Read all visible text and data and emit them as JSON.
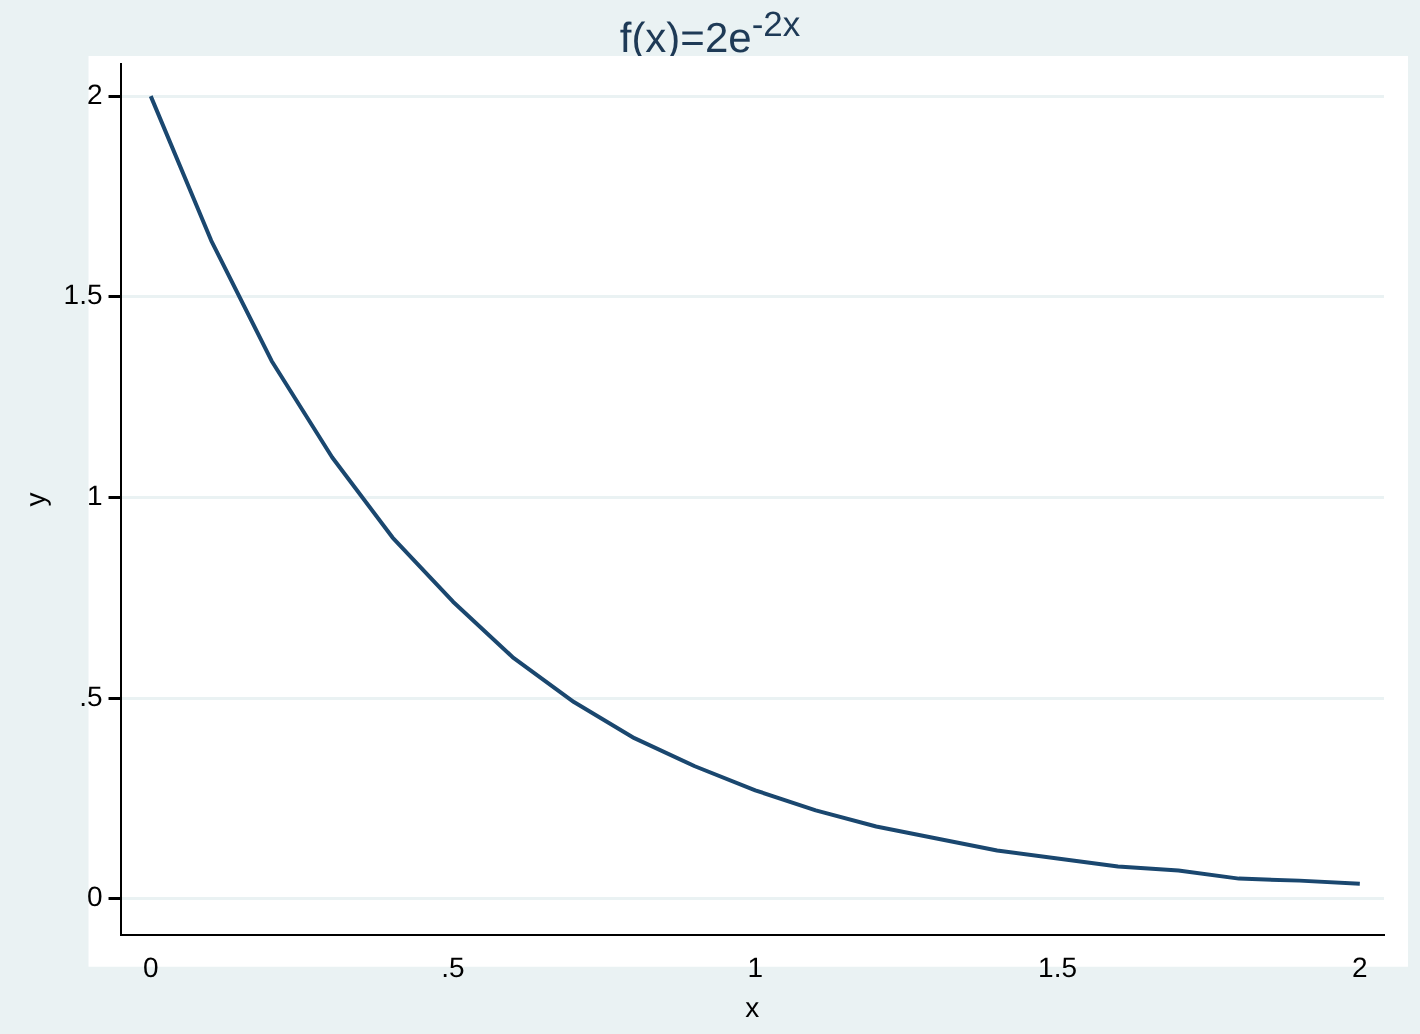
{
  "chart_data": {
    "type": "line",
    "title": "f(x)=2e$^{-2x}$",
    "xlabel": "x",
    "ylabel": "y",
    "x": [
      0,
      0.1,
      0.2,
      0.3,
      0.4,
      0.5,
      0.6,
      0.7,
      0.8,
      0.9,
      1,
      1.1,
      1.2,
      1.3,
      1.4,
      1.5,
      1.6,
      1.7,
      1.8,
      1.9,
      2
    ],
    "series": [
      {
        "color": "#1a476f",
        "values": [
          2,
          1.64,
          1.34,
          1.1,
          0.9,
          0.74,
          0.6,
          0.49,
          0.4,
          0.33,
          0.27,
          0.22,
          0.18,
          0.15,
          0.12,
          0.1,
          0.08,
          0.07,
          0.05,
          0.045,
          0.037
        ]
      }
    ],
    "xlim": [
      -0.05,
      2.04
    ],
    "ylim": [
      -0.09,
      2.08
    ],
    "xticks": [
      0,
      {
        "value": 0.5,
        "label": ".5"
      },
      1,
      1.5,
      2
    ],
    "yticks": [
      0,
      {
        "value": 0.5,
        "label": ".5"
      },
      1,
      1.5,
      2
    ],
    "grid": "y",
    "legend": false,
    "marker": "none",
    "line_style": "solid"
  }
}
